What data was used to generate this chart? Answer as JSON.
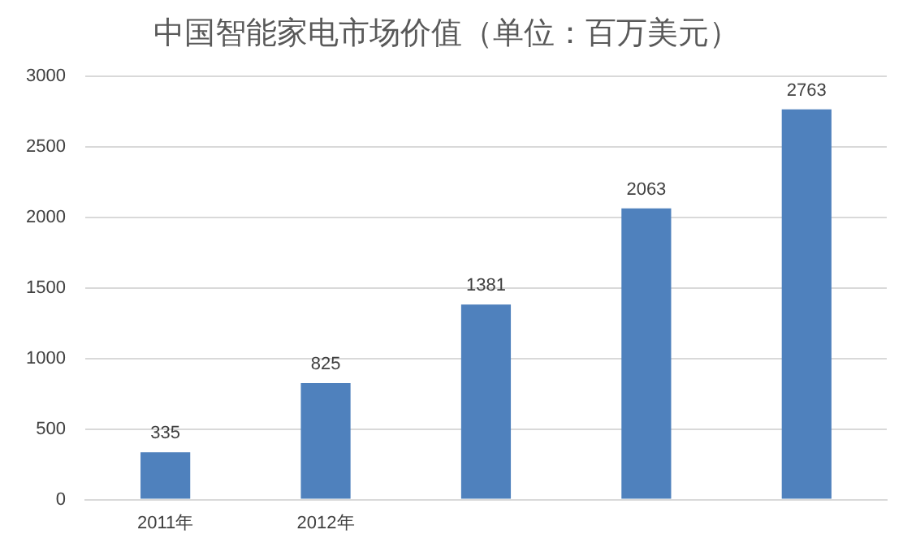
{
  "chart_data": {
    "type": "bar",
    "title": "中国智能家电市场价值（单位：百万美元）",
    "categories": [
      "2011年",
      "2012年",
      null,
      null,
      null
    ],
    "values": [
      335,
      825,
      1381,
      2063,
      2763
    ],
    "color": "#4f81bd",
    "ylim": [
      0,
      3000
    ],
    "yticks": [
      0,
      500,
      1000,
      1500,
      2000,
      2500,
      3000
    ],
    "grid": "y",
    "data_labels": true
  }
}
